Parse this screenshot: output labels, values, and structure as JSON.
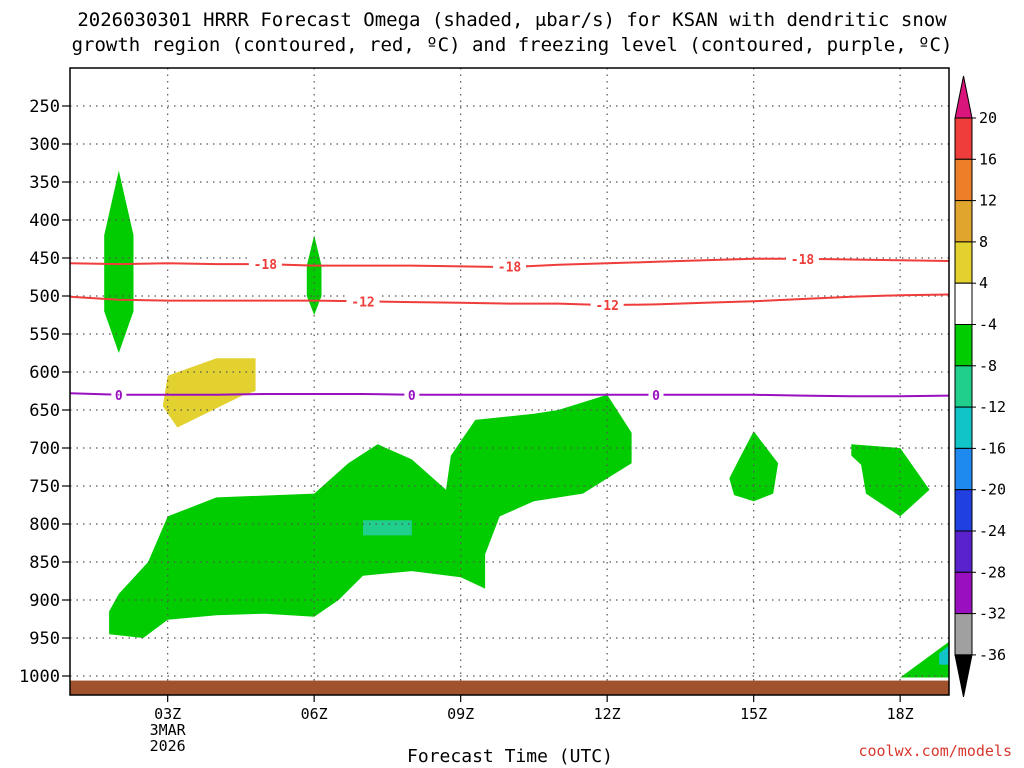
{
  "title_line1": "2026030301 HRRR Forecast Omega (shaded, μbar/s) for KSAN with dendritic snow",
  "title_line2": "growth region (contoured, red, ºC) and freezing level (contoured, purple, ºC)",
  "credit": "coolwx.com/models",
  "chart_data": {
    "type": "time-height cross section",
    "x_axis": {
      "label": "Forecast Time (UTC)",
      "range_hours": [
        -1,
        17
      ],
      "ticks": [
        {
          "hour": 1,
          "label": "03Z",
          "sub1": "3MAR",
          "sub2": "2026"
        },
        {
          "hour": 4,
          "label": "06Z"
        },
        {
          "hour": 7,
          "label": "09Z"
        },
        {
          "hour": 10,
          "label": "12Z"
        },
        {
          "hour": 13,
          "label": "15Z"
        },
        {
          "hour": 16,
          "label": "18Z"
        }
      ]
    },
    "y_axis": {
      "unit": "hPa",
      "range": [
        1025,
        200
      ],
      "ticks": [
        250,
        300,
        350,
        400,
        450,
        500,
        550,
        600,
        650,
        700,
        750,
        800,
        850,
        900,
        950,
        1000
      ]
    },
    "colorbar": {
      "labels": [
        "20",
        "16",
        "12",
        "8",
        "4",
        "-4",
        "-8",
        "-12",
        "-16",
        "-20",
        "-24",
        "-28",
        "-32",
        "-36"
      ],
      "bands": [
        {
          "color": "#ee3d3a"
        },
        {
          "color": "#ee7f28"
        },
        {
          "color": "#e0a52c"
        },
        {
          "color": "#e2d12e"
        },
        {
          "color": "#ffffff"
        },
        {
          "color": "#00cc00"
        },
        {
          "color": "#1fcf8b"
        },
        {
          "color": "#10c4c8"
        },
        {
          "color": "#1e8af0"
        },
        {
          "color": "#2040e0"
        },
        {
          "color": "#5a22cc"
        },
        {
          "color": "#9a10c0"
        },
        {
          "color": "#a0a0a0"
        }
      ],
      "top_arrow_color": "#d9147a",
      "bottom_arrow_color": "#000000"
    },
    "contours": [
      {
        "name": "-18",
        "color": "#ee3d3a",
        "points": [
          [
            -1,
            457
          ],
          [
            0,
            458
          ],
          [
            1,
            457
          ],
          [
            2,
            458
          ],
          [
            3,
            458
          ],
          [
            4,
            460
          ],
          [
            5,
            460
          ],
          [
            6,
            460
          ],
          [
            7,
            461
          ],
          [
            8,
            462
          ],
          [
            9,
            459
          ],
          [
            10,
            457
          ],
          [
            11,
            455
          ],
          [
            12,
            453
          ],
          [
            13,
            451
          ],
          [
            14,
            451
          ],
          [
            15,
            452
          ],
          [
            16,
            453
          ],
          [
            17,
            454
          ]
        ],
        "labels": [
          [
            3,
            458
          ],
          [
            8,
            461
          ],
          [
            14,
            451
          ]
        ]
      },
      {
        "name": "-12",
        "color": "#ee3d3a",
        "points": [
          [
            -1,
            501
          ],
          [
            0,
            505
          ],
          [
            1,
            506
          ],
          [
            2,
            506
          ],
          [
            3,
            506
          ],
          [
            4,
            506
          ],
          [
            5,
            507
          ],
          [
            6,
            508
          ],
          [
            7,
            509
          ],
          [
            8,
            510
          ],
          [
            9,
            510
          ],
          [
            10,
            512
          ],
          [
            11,
            511
          ],
          [
            12,
            509
          ],
          [
            13,
            507
          ],
          [
            14,
            504
          ],
          [
            15,
            501
          ],
          [
            16,
            499
          ],
          [
            17,
            498
          ]
        ],
        "labels": [
          [
            5,
            507
          ],
          [
            10,
            512
          ]
        ]
      },
      {
        "name": "0",
        "color": "#9a10c0",
        "points": [
          [
            -1,
            628
          ],
          [
            0,
            630
          ],
          [
            1,
            630
          ],
          [
            2,
            630
          ],
          [
            3,
            629
          ],
          [
            4,
            629
          ],
          [
            5,
            629
          ],
          [
            6,
            630
          ],
          [
            7,
            630
          ],
          [
            8,
            630
          ],
          [
            9,
            630
          ],
          [
            10,
            630
          ],
          [
            11,
            630
          ],
          [
            12,
            630
          ],
          [
            13,
            630
          ],
          [
            14,
            631
          ],
          [
            15,
            632
          ],
          [
            16,
            632
          ],
          [
            17,
            631
          ]
        ],
        "labels": [
          [
            0,
            630
          ],
          [
            6,
            630
          ],
          [
            11,
            630
          ]
        ]
      }
    ],
    "shaded_regions": [
      {
        "band": "-4",
        "color": "#00cc00",
        "points": [
          [
            -0.2,
            945
          ],
          [
            0.5,
            950
          ],
          [
            1.0,
            926
          ],
          [
            2.0,
            920
          ],
          [
            3.0,
            918
          ],
          [
            4.0,
            922
          ],
          [
            4.5,
            900
          ],
          [
            5.0,
            868
          ],
          [
            5.5,
            865
          ],
          [
            6.0,
            862
          ],
          [
            7.0,
            870
          ],
          [
            7.5,
            885
          ],
          [
            7.5,
            840
          ],
          [
            7.8,
            790
          ],
          [
            8.5,
            770
          ],
          [
            9.5,
            760
          ],
          [
            10.5,
            720
          ],
          [
            10.5,
            680
          ],
          [
            10.0,
            630
          ],
          [
            9.0,
            650
          ],
          [
            8.5,
            655
          ],
          [
            7.3,
            663
          ],
          [
            6.8,
            710
          ],
          [
            6.7,
            755
          ],
          [
            6.0,
            715
          ],
          [
            5.3,
            695
          ],
          [
            4.7,
            720
          ],
          [
            4.0,
            760
          ],
          [
            2.0,
            765
          ],
          [
            1.0,
            790
          ],
          [
            0.6,
            850
          ],
          [
            0.0,
            892
          ],
          [
            -0.2,
            915
          ]
        ]
      },
      {
        "band": "-4",
        "color": "#00cc00",
        "points": [
          [
            0.0,
            335
          ],
          [
            0.3,
            420
          ],
          [
            0.3,
            520
          ],
          [
            0.0,
            575
          ],
          [
            -0.3,
            520
          ],
          [
            -0.3,
            420
          ]
        ]
      },
      {
        "band": "-4",
        "color": "#00cc00",
        "points": [
          [
            4.0,
            420
          ],
          [
            4.15,
            460
          ],
          [
            4.15,
            500
          ],
          [
            4.0,
            525
          ],
          [
            3.85,
            500
          ],
          [
            3.85,
            460
          ]
        ]
      },
      {
        "band": "-4",
        "color": "#00cc00",
        "points": [
          [
            13.0,
            678
          ],
          [
            13.5,
            720
          ],
          [
            13.4,
            760
          ],
          [
            13.0,
            770
          ],
          [
            12.6,
            762
          ],
          [
            12.5,
            740
          ],
          [
            12.7,
            715
          ]
        ]
      },
      {
        "band": "-4",
        "color": "#00cc00",
        "points": [
          [
            15.0,
            695
          ],
          [
            16.0,
            700
          ],
          [
            16.6,
            755
          ],
          [
            16.0,
            790
          ],
          [
            15.3,
            760
          ],
          [
            15.2,
            722
          ],
          [
            15.0,
            710
          ]
        ]
      },
      {
        "band": "-4",
        "color": "#00cc00",
        "points": [
          [
            16.0,
            1002
          ],
          [
            17.0,
            955
          ],
          [
            17.0,
            1002
          ]
        ]
      },
      {
        "band": "4",
        "color": "#e2d12e",
        "points": [
          [
            2.0,
            582
          ],
          [
            2.8,
            582
          ],
          [
            2.8,
            625
          ],
          [
            2.5,
            632
          ],
          [
            1.2,
            673
          ],
          [
            0.9,
            645
          ],
          [
            1.0,
            605
          ]
        ]
      },
      {
        "band": "-8",
        "color": "#1fcf8b",
        "points": [
          [
            5.0,
            795
          ],
          [
            6.0,
            795
          ],
          [
            6.0,
            815
          ],
          [
            5.0,
            815
          ]
        ]
      },
      {
        "band": "-12",
        "color": "#10c4c8",
        "points": [
          [
            16.8,
            970
          ],
          [
            17.0,
            960
          ],
          [
            17.0,
            985
          ],
          [
            16.8,
            985
          ]
        ]
      }
    ],
    "ground": {
      "from_hpa": 1025,
      "to_hpa": 1006,
      "color": "#a0522d"
    },
    "grid": true
  }
}
